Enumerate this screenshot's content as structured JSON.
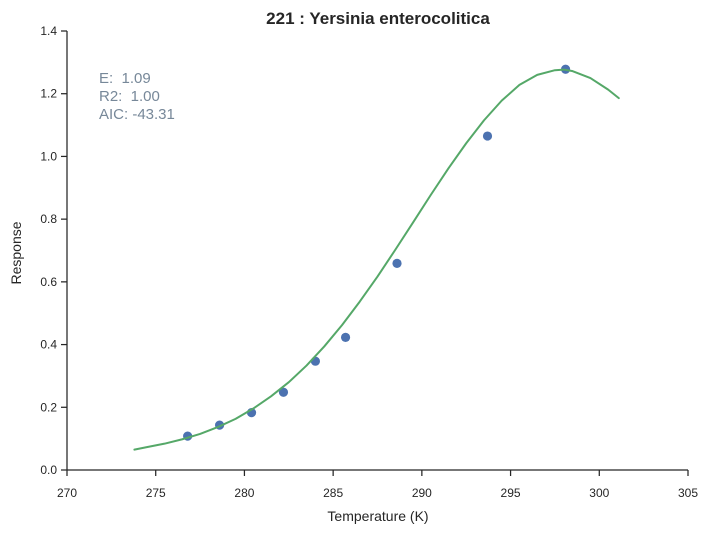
{
  "chart_data": {
    "type": "scatter",
    "title": "221 : Yersinia enterocolitica",
    "xlabel": "Temperature (K)",
    "ylabel": "Response",
    "xlim": [
      270,
      305
    ],
    "ylim": [
      0.0,
      1.4
    ],
    "xticks": [
      "270",
      "275",
      "280",
      "285",
      "290",
      "295",
      "300",
      "305"
    ],
    "yticks": [
      "0.0",
      "0.2",
      "0.4",
      "0.6",
      "0.8",
      "1.0",
      "1.2",
      "1.4"
    ],
    "grid": false,
    "series": [
      {
        "kind": "points",
        "color": "#4c72b0",
        "x": [
          276.8,
          278.6,
          280.4,
          282.2,
          284.0,
          285.7,
          288.6,
          293.7,
          298.1
        ],
        "y": [
          0.108,
          0.143,
          0.183,
          0.248,
          0.347,
          0.423,
          0.659,
          1.065,
          1.278
        ]
      },
      {
        "kind": "line",
        "color": "#55a868",
        "x": [
          273.8,
          274.5,
          275.5,
          276.5,
          277.5,
          278.5,
          279.5,
          280.5,
          281.5,
          282.5,
          283.5,
          284.5,
          285.5,
          286.5,
          287.5,
          288.5,
          289.5,
          290.5,
          291.5,
          292.5,
          293.5,
          294.5,
          295.5,
          296.5,
          297.5,
          298.0,
          298.5,
          299.5,
          300.5,
          301.1
        ],
        "y": [
          0.065,
          0.073,
          0.084,
          0.098,
          0.115,
          0.137,
          0.163,
          0.196,
          0.235,
          0.28,
          0.333,
          0.394,
          0.462,
          0.537,
          0.617,
          0.702,
          0.789,
          0.877,
          0.962,
          1.042,
          1.115,
          1.178,
          1.228,
          1.26,
          1.275,
          1.277,
          1.272,
          1.25,
          1.213,
          1.186
        ]
      }
    ],
    "stats": [
      "E:  1.09",
      "R2:  1.00",
      "AIC: -43.31"
    ]
  }
}
